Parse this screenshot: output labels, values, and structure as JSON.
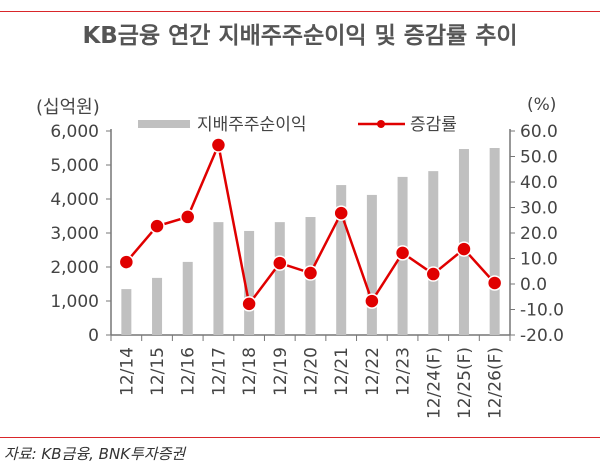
{
  "title": "KB금융 연간 지배주주순이익 및 증감률 추이",
  "source": "자료: KB금융, BNK투자증권",
  "chart_data": {
    "type": "bar+line",
    "title": "KB금융 연간 지배주주순이익 및 증감률 추이",
    "categories": [
      "12/14",
      "12/15",
      "12/16",
      "12/17",
      "12/18",
      "12/19",
      "12/20",
      "12/21",
      "12/22",
      "12/23",
      "12/24(F)",
      "12/25(F)",
      "12/26(F)"
    ],
    "left_axis": {
      "label": "(십억원)",
      "range": [
        0,
        6000
      ],
      "ticks": [
        "0",
        "1,000",
        "2,000",
        "3,000",
        "4,000",
        "5,000",
        "6,000"
      ],
      "tick_values": [
        0,
        1000,
        2000,
        3000,
        4000,
        5000,
        6000
      ]
    },
    "right_axis": {
      "label": "(%)",
      "range": [
        -20,
        60
      ],
      "ticks": [
        "-20.0",
        "-10.0",
        "0.0",
        "10.0",
        "20.0",
        "30.0",
        "40.0",
        "50.0",
        "60.0"
      ],
      "tick_values": [
        -20,
        -10,
        0,
        10,
        20,
        30,
        40,
        50,
        60
      ]
    },
    "series": [
      {
        "name": "지배주주순이익",
        "type": "bar",
        "axis": "left",
        "color": "#c0c0c0",
        "values": [
          1350,
          1680,
          2150,
          3320,
          3060,
          3320,
          3470,
          4410,
          4120,
          4650,
          4820,
          5470,
          5500
        ]
      },
      {
        "name": "증감률",
        "type": "line",
        "axis": "right",
        "color": "#e00000",
        "values": [
          8.6,
          22.7,
          26.3,
          54.5,
          -7.8,
          8.2,
          4.3,
          27.8,
          -6.7,
          12.2,
          3.9,
          13.7,
          0.4
        ]
      }
    ],
    "legend": "top",
    "grid": false
  }
}
